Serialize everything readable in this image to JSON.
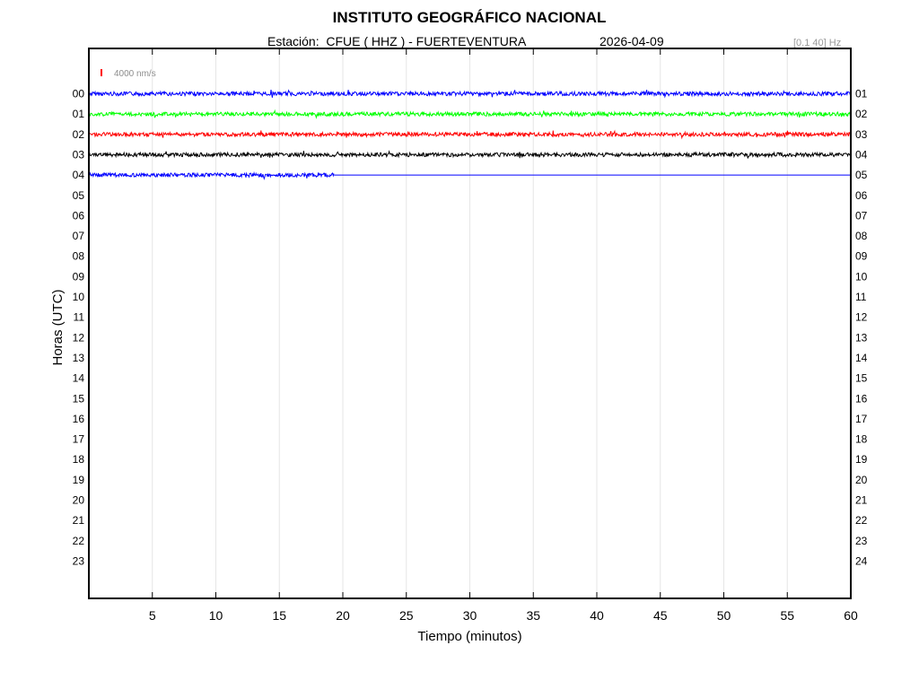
{
  "header": {
    "title": "INSTITUTO GEOGRÁFICO NACIONAL",
    "station_label": "Estación:  CFUE ( HHZ ) - FUERTEVENTURA",
    "date": "2026-04-09",
    "filter_band": "[0.1 40] Hz"
  },
  "chart_data": {
    "type": "line",
    "title": "INSTITUTO GEOGRÁFICO NACIONAL",
    "xlabel": "Tiempo (minutos)",
    "ylabel": "Horas (UTC)",
    "xlim": [
      0,
      60
    ],
    "x_ticks": [
      5,
      10,
      15,
      20,
      25,
      30,
      35,
      40,
      45,
      50,
      55,
      60
    ],
    "left_hour_labels": [
      "00",
      "01",
      "02",
      "03",
      "04",
      "05",
      "06",
      "07",
      "08",
      "09",
      "10",
      "11",
      "12",
      "13",
      "14",
      "15",
      "16",
      "17",
      "18",
      "19",
      "20",
      "21",
      "22",
      "23"
    ],
    "right_hour_labels": [
      "01",
      "02",
      "03",
      "04",
      "05",
      "06",
      "07",
      "08",
      "09",
      "10",
      "11",
      "12",
      "13",
      "14",
      "15",
      "16",
      "17",
      "18",
      "19",
      "20",
      "21",
      "22",
      "23",
      "24"
    ],
    "grid": true,
    "scale_bar": {
      "label": "4000 nm/s",
      "color": "#ff0000"
    },
    "series": [
      {
        "hour": 0,
        "color": "#0000ff",
        "x_end": 60,
        "amplitude": "low"
      },
      {
        "hour": 1,
        "color": "#00ff00",
        "x_end": 60,
        "amplitude": "low"
      },
      {
        "hour": 2,
        "color": "#ff0000",
        "x_end": 60,
        "amplitude": "low"
      },
      {
        "hour": 3,
        "color": "#000000",
        "x_end": 60,
        "amplitude": "low"
      },
      {
        "hour": 4,
        "color": "#0000ff",
        "x_end": 19.3,
        "amplitude": "low",
        "flatline_to": 60
      }
    ]
  }
}
